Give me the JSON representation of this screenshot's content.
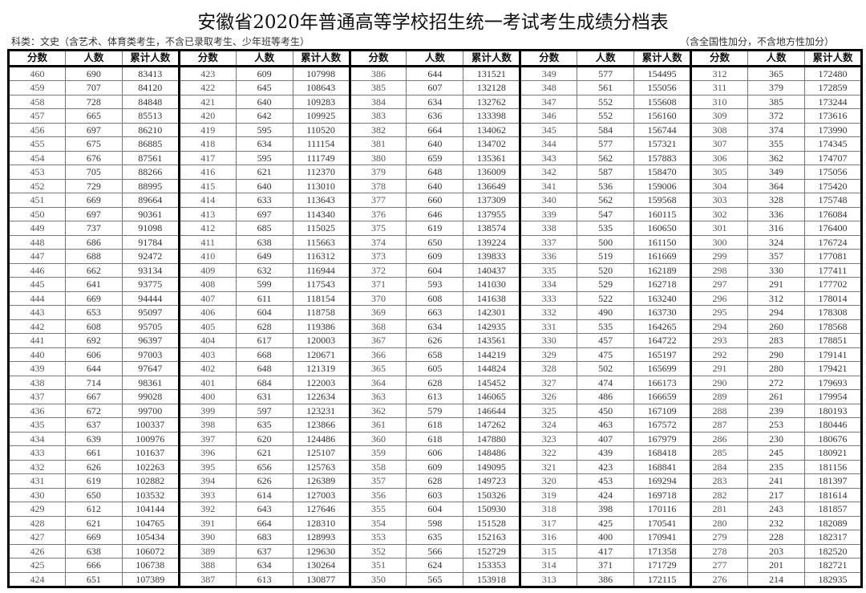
{
  "title": "安徽省2020年普通高等学校招生统一考试考生成绩分档表",
  "subtitle_left": "科类：文史（含艺术、体育类考生，不含已录取考生、少年班等考生）",
  "subtitle_right": "（含全国性加分，不含地方性加分）",
  "columns": [
    "分数",
    "人数",
    "累计人数"
  ],
  "groups": [
    [
      [
        460,
        690,
        83413
      ],
      [
        459,
        707,
        84120
      ],
      [
        458,
        728,
        84848
      ],
      [
        457,
        665,
        85513
      ],
      [
        456,
        697,
        86210
      ],
      [
        455,
        675,
        86885
      ],
      [
        454,
        676,
        87561
      ],
      [
        453,
        705,
        88266
      ],
      [
        452,
        729,
        88995
      ],
      [
        451,
        669,
        89664
      ],
      [
        450,
        697,
        90361
      ],
      [
        449,
        737,
        91098
      ],
      [
        448,
        686,
        91784
      ],
      [
        447,
        688,
        92472
      ],
      [
        446,
        662,
        93134
      ],
      [
        445,
        641,
        93775
      ],
      [
        444,
        669,
        94444
      ],
      [
        443,
        653,
        95097
      ],
      [
        442,
        608,
        95705
      ],
      [
        441,
        692,
        96397
      ],
      [
        440,
        606,
        97003
      ],
      [
        439,
        644,
        97647
      ],
      [
        438,
        714,
        98361
      ],
      [
        437,
        667,
        99028
      ],
      [
        436,
        672,
        99700
      ],
      [
        435,
        637,
        100337
      ],
      [
        434,
        639,
        100976
      ],
      [
        433,
        661,
        101637
      ],
      [
        432,
        626,
        102263
      ],
      [
        431,
        619,
        102882
      ],
      [
        430,
        650,
        103532
      ],
      [
        429,
        612,
        104144
      ],
      [
        428,
        621,
        104765
      ],
      [
        427,
        669,
        105434
      ],
      [
        426,
        638,
        106072
      ],
      [
        425,
        666,
        106738
      ],
      [
        424,
        651,
        107389
      ]
    ],
    [
      [
        423,
        609,
        107998
      ],
      [
        422,
        645,
        108643
      ],
      [
        421,
        640,
        109283
      ],
      [
        420,
        642,
        109925
      ],
      [
        419,
        595,
        110520
      ],
      [
        418,
        634,
        111154
      ],
      [
        417,
        595,
        111749
      ],
      [
        416,
        621,
        112370
      ],
      [
        415,
        640,
        113010
      ],
      [
        414,
        633,
        113643
      ],
      [
        413,
        697,
        114340
      ],
      [
        412,
        685,
        115025
      ],
      [
        411,
        638,
        115663
      ],
      [
        410,
        649,
        116312
      ],
      [
        409,
        632,
        116944
      ],
      [
        408,
        599,
        117543
      ],
      [
        407,
        611,
        118154
      ],
      [
        406,
        604,
        118758
      ],
      [
        405,
        628,
        119386
      ],
      [
        404,
        617,
        120003
      ],
      [
        403,
        668,
        120671
      ],
      [
        402,
        648,
        121319
      ],
      [
        401,
        684,
        122003
      ],
      [
        400,
        631,
        122634
      ],
      [
        399,
        597,
        123231
      ],
      [
        398,
        635,
        123866
      ],
      [
        397,
        620,
        124486
      ],
      [
        396,
        621,
        125107
      ],
      [
        395,
        656,
        125763
      ],
      [
        394,
        626,
        126389
      ],
      [
        393,
        614,
        127003
      ],
      [
        392,
        643,
        127646
      ],
      [
        391,
        664,
        128310
      ],
      [
        390,
        683,
        128993
      ],
      [
        389,
        637,
        129630
      ],
      [
        388,
        634,
        130264
      ],
      [
        387,
        613,
        130877
      ]
    ],
    [
      [
        386,
        644,
        131521
      ],
      [
        385,
        607,
        132128
      ],
      [
        384,
        634,
        132762
      ],
      [
        383,
        636,
        133398
      ],
      [
        382,
        664,
        134062
      ],
      [
        381,
        640,
        134702
      ],
      [
        380,
        659,
        135361
      ],
      [
        379,
        648,
        136009
      ],
      [
        378,
        640,
        136649
      ],
      [
        377,
        660,
        137309
      ],
      [
        376,
        646,
        137955
      ],
      [
        375,
        619,
        138574
      ],
      [
        374,
        650,
        139224
      ],
      [
        373,
        609,
        139833
      ],
      [
        372,
        604,
        140437
      ],
      [
        371,
        593,
        141030
      ],
      [
        370,
        608,
        141638
      ],
      [
        369,
        663,
        142301
      ],
      [
        368,
        634,
        142935
      ],
      [
        367,
        626,
        143561
      ],
      [
        366,
        658,
        144219
      ],
      [
        365,
        605,
        144824
      ],
      [
        364,
        628,
        145452
      ],
      [
        363,
        613,
        146065
      ],
      [
        362,
        579,
        146644
      ],
      [
        361,
        618,
        147262
      ],
      [
        360,
        618,
        147880
      ],
      [
        359,
        606,
        148486
      ],
      [
        358,
        609,
        149095
      ],
      [
        357,
        628,
        149723
      ],
      [
        356,
        603,
        150326
      ],
      [
        355,
        604,
        150930
      ],
      [
        354,
        598,
        151528
      ],
      [
        353,
        635,
        152163
      ],
      [
        352,
        566,
        152729
      ],
      [
        351,
        624,
        153353
      ],
      [
        350,
        565,
        153918
      ]
    ],
    [
      [
        349,
        577,
        154495
      ],
      [
        348,
        561,
        155056
      ],
      [
        347,
        552,
        155608
      ],
      [
        346,
        552,
        156160
      ],
      [
        345,
        584,
        156744
      ],
      [
        344,
        577,
        157321
      ],
      [
        343,
        562,
        157883
      ],
      [
        342,
        587,
        158470
      ],
      [
        341,
        536,
        159006
      ],
      [
        340,
        562,
        159568
      ],
      [
        339,
        547,
        160115
      ],
      [
        338,
        535,
        160650
      ],
      [
        337,
        500,
        161150
      ],
      [
        336,
        519,
        161669
      ],
      [
        335,
        520,
        162189
      ],
      [
        334,
        529,
        162718
      ],
      [
        333,
        522,
        163240
      ],
      [
        332,
        490,
        163730
      ],
      [
        331,
        535,
        164265
      ],
      [
        330,
        457,
        164722
      ],
      [
        329,
        475,
        165197
      ],
      [
        328,
        502,
        165699
      ],
      [
        327,
        474,
        166173
      ],
      [
        326,
        486,
        166659
      ],
      [
        325,
        450,
        167109
      ],
      [
        324,
        463,
        167572
      ],
      [
        323,
        407,
        167979
      ],
      [
        322,
        439,
        168418
      ],
      [
        321,
        423,
        168841
      ],
      [
        320,
        453,
        169294
      ],
      [
        319,
        424,
        169718
      ],
      [
        318,
        398,
        170116
      ],
      [
        317,
        425,
        170541
      ],
      [
        316,
        400,
        170941
      ],
      [
        315,
        417,
        171358
      ],
      [
        314,
        371,
        171729
      ],
      [
        313,
        386,
        172115
      ]
    ],
    [
      [
        312,
        365,
        172480
      ],
      [
        311,
        379,
        172859
      ],
      [
        310,
        385,
        173244
      ],
      [
        309,
        372,
        173616
      ],
      [
        308,
        374,
        173990
      ],
      [
        307,
        355,
        174345
      ],
      [
        306,
        362,
        174707
      ],
      [
        305,
        349,
        175056
      ],
      [
        304,
        364,
        175420
      ],
      [
        303,
        328,
        175748
      ],
      [
        302,
        336,
        176084
      ],
      [
        301,
        316,
        176400
      ],
      [
        300,
        324,
        176724
      ],
      [
        299,
        357,
        177081
      ],
      [
        298,
        330,
        177411
      ],
      [
        297,
        291,
        177702
      ],
      [
        296,
        312,
        178014
      ],
      [
        295,
        294,
        178308
      ],
      [
        294,
        260,
        178568
      ],
      [
        293,
        283,
        178851
      ],
      [
        292,
        290,
        179141
      ],
      [
        291,
        280,
        179421
      ],
      [
        290,
        272,
        179693
      ],
      [
        289,
        261,
        179954
      ],
      [
        288,
        239,
        180193
      ],
      [
        287,
        253,
        180446
      ],
      [
        286,
        230,
        180676
      ],
      [
        285,
        245,
        180921
      ],
      [
        284,
        235,
        181156
      ],
      [
        283,
        241,
        181397
      ],
      [
        282,
        217,
        181614
      ],
      [
        281,
        243,
        181857
      ],
      [
        280,
        232,
        182089
      ],
      [
        279,
        228,
        182317
      ],
      [
        278,
        203,
        182520
      ],
      [
        277,
        201,
        182721
      ],
      [
        276,
        214,
        182935
      ]
    ]
  ]
}
